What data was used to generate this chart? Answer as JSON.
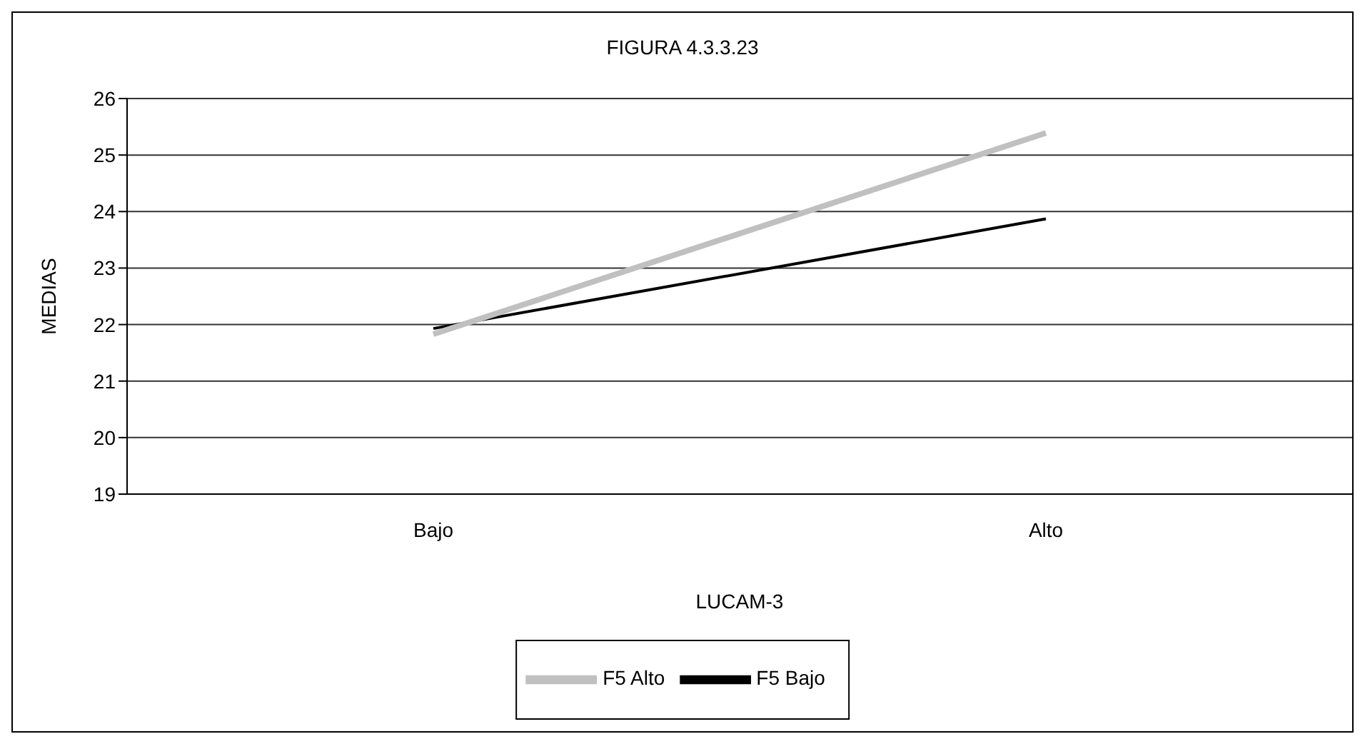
{
  "chart_data": {
    "type": "line",
    "title": "FIGURA 4.3.3.23",
    "xlabel": "LUCAM-3",
    "ylabel": "MEDIAS",
    "categories": [
      "Bajo",
      "Alto"
    ],
    "series": [
      {
        "name": "F5 Bajo",
        "color": "#000000",
        "values": [
          21.93,
          23.87
        ]
      },
      {
        "name": "F5 Alto",
        "color": "#c0c0c0",
        "values": [
          21.83,
          25.39
        ]
      }
    ],
    "ylim": [
      19,
      26
    ],
    "yticks": [
      19,
      20,
      21,
      22,
      23,
      24,
      25,
      26
    ],
    "grid": "y",
    "legend": "bottom",
    "marker": "none",
    "line_style": "solid"
  }
}
